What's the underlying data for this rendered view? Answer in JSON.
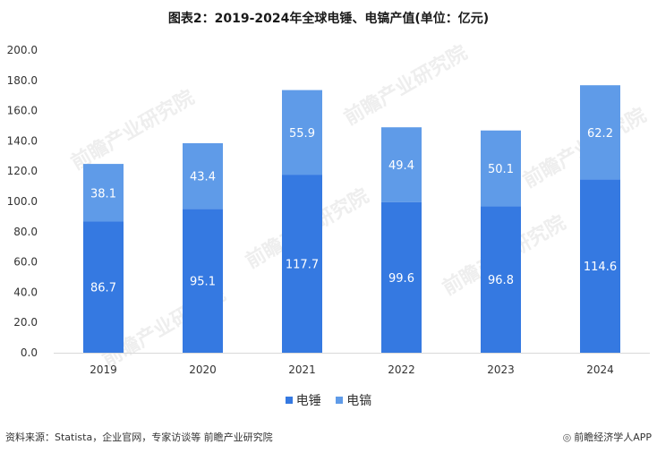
{
  "title": "图表2：2019-2024年全球电锤、电镐产值(单位：亿元)",
  "footer": {
    "source": "资料来源：Statista，企业官网，专家访谈等 前瞻产业研究院",
    "brand": "前瞻经济学人APP",
    "brand_icon": "logo-icon"
  },
  "watermark": "前瞻产业研究院",
  "colors": {
    "series_1": "#3579e1",
    "series_2": "#5f9be8",
    "axis": "#d9d9d9",
    "text": "#333333"
  },
  "chart_data": {
    "type": "bar",
    "stacked": true,
    "categories": [
      "2019",
      "2020",
      "2021",
      "2022",
      "2023",
      "2024"
    ],
    "series": [
      {
        "name": "电锤",
        "values": [
          86.7,
          95.1,
          117.7,
          99.6,
          96.8,
          114.6
        ]
      },
      {
        "name": "电镐",
        "values": [
          38.1,
          43.4,
          55.9,
          49.4,
          50.1,
          62.2
        ]
      }
    ],
    "y_ticks": [
      "0.0",
      "20.0",
      "40.0",
      "60.0",
      "80.0",
      "100.0",
      "120.0",
      "140.0",
      "160.0",
      "180.0",
      "200.0"
    ],
    "ylim": [
      0,
      200
    ],
    "legend_position": "bottom-center",
    "grid": false
  }
}
